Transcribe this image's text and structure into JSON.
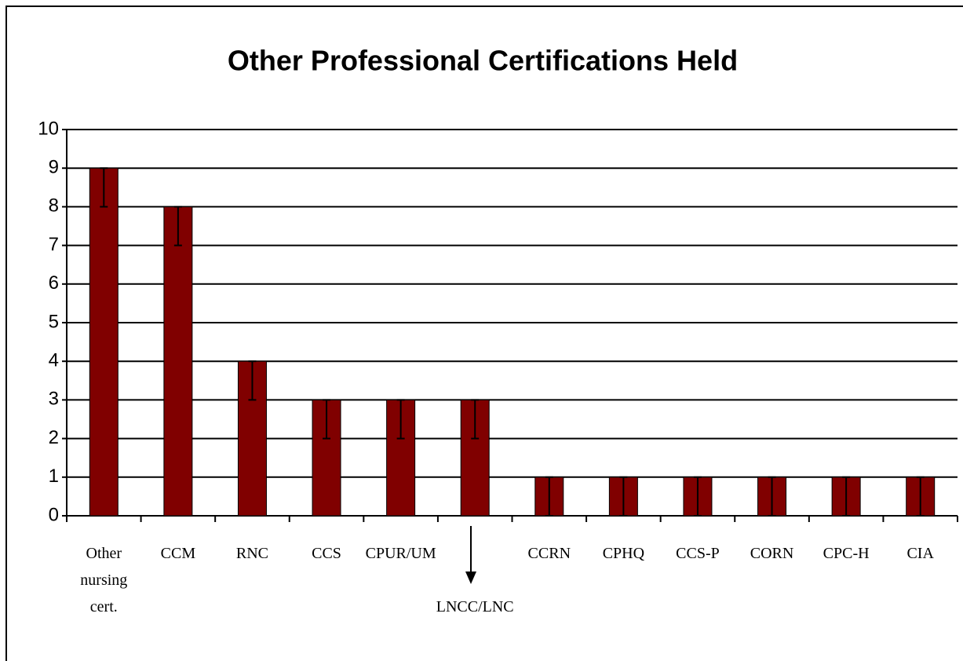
{
  "chart_data": {
    "type": "bar",
    "title": "Other Professional Certifications Held",
    "categories": [
      "Other nursing cert.",
      "CCM",
      "RNC",
      "CCS",
      "CPUR/UM",
      "LNCC/LNC",
      "CCRN",
      "CPHQ",
      "CCS-P",
      "CORN",
      "CPC-H",
      "CIA"
    ],
    "values": [
      9,
      8,
      4,
      3,
      3,
      3,
      1,
      1,
      1,
      1,
      1,
      1
    ],
    "errors": [
      1,
      1,
      1,
      1,
      1,
      1,
      1,
      1,
      1,
      1,
      1,
      1
    ],
    "color": "#800000",
    "ylim": [
      0,
      10
    ],
    "yticks": [
      0,
      1,
      2,
      3,
      4,
      5,
      6,
      7,
      8,
      9,
      10
    ],
    "grid": true
  }
}
